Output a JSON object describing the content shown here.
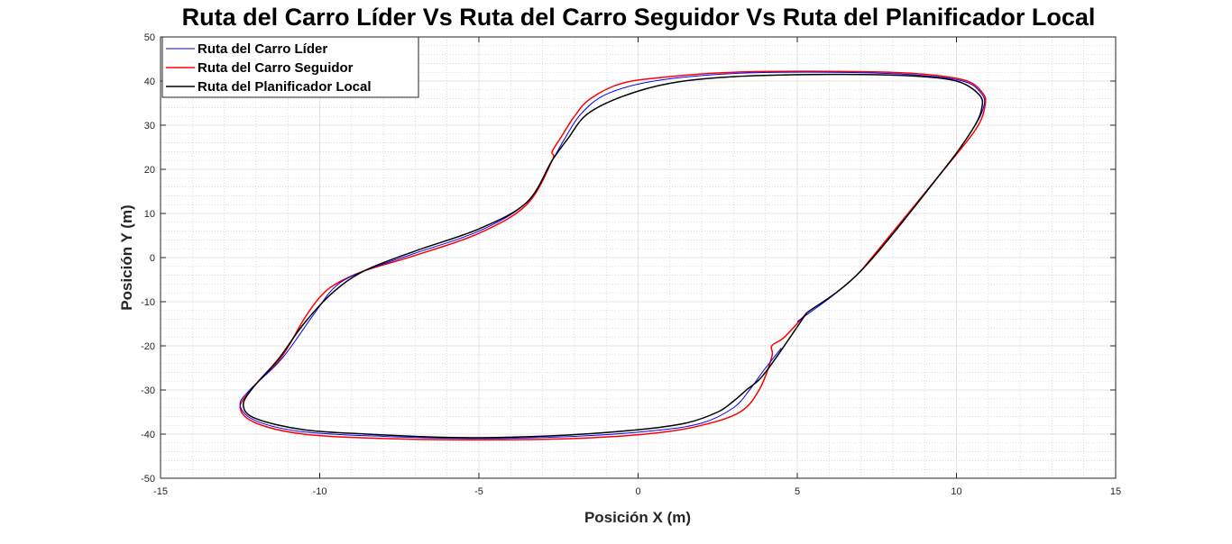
{
  "chart_data": {
    "type": "line",
    "title": "Ruta del Carro Líder Vs Ruta del Carro Seguidor Vs Ruta del Planificador Local",
    "xlabel": "Posición X (m)",
    "ylabel": "Posición Y (m)",
    "xlim": [
      -15,
      15
    ],
    "ylim": [
      -50,
      50
    ],
    "xticks": [
      -15,
      -10,
      -5,
      0,
      5,
      10,
      15
    ],
    "yticks": [
      -50,
      -40,
      -30,
      -20,
      -10,
      0,
      10,
      20,
      30,
      40,
      50
    ],
    "xtick_labels": [
      "-15",
      "-10",
      "-5",
      "0",
      "5",
      "10",
      "15"
    ],
    "ytick_labels": [
      "-50",
      "-40",
      "-30",
      "-20",
      "-10",
      "0",
      "10",
      "20",
      "30",
      "40",
      "50"
    ],
    "grid": true,
    "minor_grid": true,
    "legend_position": "top-left",
    "series": [
      {
        "name": "Ruta del Carro Líder",
        "color": "#0000ff",
        "x": [
          4.5,
          3.9,
          3.5,
          3.0,
          2.0,
          0.5,
          -2.0,
          -5.0,
          -8.0,
          -10.5,
          -12.0,
          -12.5,
          -12.2,
          -11.2,
          -10.2,
          -9.5,
          -8.6,
          -7.0,
          -5.0,
          -3.5,
          -2.7,
          -2.3,
          -1.8,
          -1.0,
          0.5,
          3.0,
          6.0,
          8.5,
          10.2,
          10.8,
          10.85,
          10.5,
          9.5,
          7.0,
          5.0
        ],
        "y": [
          -20.5,
          -26.0,
          -30.0,
          -34.0,
          -37.5,
          -39.2,
          -40.5,
          -41.0,
          -40.5,
          -39.5,
          -37.0,
          -33.5,
          -30.0,
          -23.0,
          -13.0,
          -6.5,
          -3.0,
          1.0,
          6.0,
          12.5,
          22.0,
          27.0,
          32.5,
          37.0,
          40.0,
          41.7,
          42.0,
          41.5,
          40.0,
          37.0,
          34.0,
          29.0,
          19.0,
          -3.0,
          -14.5
        ]
      },
      {
        "name": "Ruta del Carro Seguidor",
        "color": "#ff0000",
        "x": [
          5.3,
          4.6,
          4.2,
          4.2,
          3.8,
          3.2,
          2.0,
          0.5,
          -2.0,
          -5.0,
          -8.0,
          -10.5,
          -12.0,
          -12.5,
          -12.1,
          -11.2,
          -10.5,
          -10.0,
          -9.5,
          -8.6,
          -7.0,
          -5.0,
          -3.5,
          -2.7,
          -2.7,
          -2.4,
          -2.0,
          -1.5,
          -0.5,
          1.0,
          3.0,
          6.0,
          8.5,
          10.2,
          10.8,
          10.9,
          10.6,
          9.5,
          7.0
        ],
        "y": [
          -12.5,
          -18.0,
          -20.0,
          -22.5,
          -30.0,
          -35.0,
          -38.0,
          -39.8,
          -41.0,
          -41.3,
          -41.0,
          -40.0,
          -37.5,
          -34.0,
          -29.5,
          -22.5,
          -14.0,
          -9.0,
          -6.0,
          -3.0,
          0.5,
          5.5,
          12.0,
          22.0,
          24.0,
          27.5,
          32.0,
          36.0,
          39.5,
          41.0,
          42.0,
          42.2,
          41.8,
          40.3,
          37.5,
          34.5,
          29.0,
          19.0,
          -3.0
        ]
      },
      {
        "name": "Ruta del Planificador Local",
        "color": "#000000",
        "x": [
          5.3,
          4.0,
          3.4,
          3.0,
          2.5,
          1.5,
          0.0,
          -2.5,
          -5.5,
          -8.5,
          -10.5,
          -12.0,
          -12.4,
          -12.1,
          -11.3,
          -10.5,
          -9.6,
          -8.6,
          -7.0,
          -5.0,
          -3.5,
          -2.7,
          -2.2,
          -1.6,
          -0.5,
          1.0,
          3.0,
          6.0,
          8.5,
          10.0,
          10.7,
          10.8,
          10.5,
          9.5,
          7.0,
          5.3
        ],
        "y": [
          -12.5,
          -26.0,
          -30.0,
          -32.5,
          -35.0,
          -37.5,
          -39.0,
          -40.3,
          -40.8,
          -40.0,
          -39.0,
          -36.5,
          -33.5,
          -29.5,
          -23.0,
          -15.0,
          -8.0,
          -3.0,
          1.5,
          6.5,
          12.5,
          22.0,
          27.0,
          32.5,
          36.5,
          39.5,
          41.0,
          41.5,
          41.2,
          40.0,
          37.0,
          34.0,
          29.0,
          19.0,
          -3.0,
          -12.5
        ]
      }
    ]
  }
}
